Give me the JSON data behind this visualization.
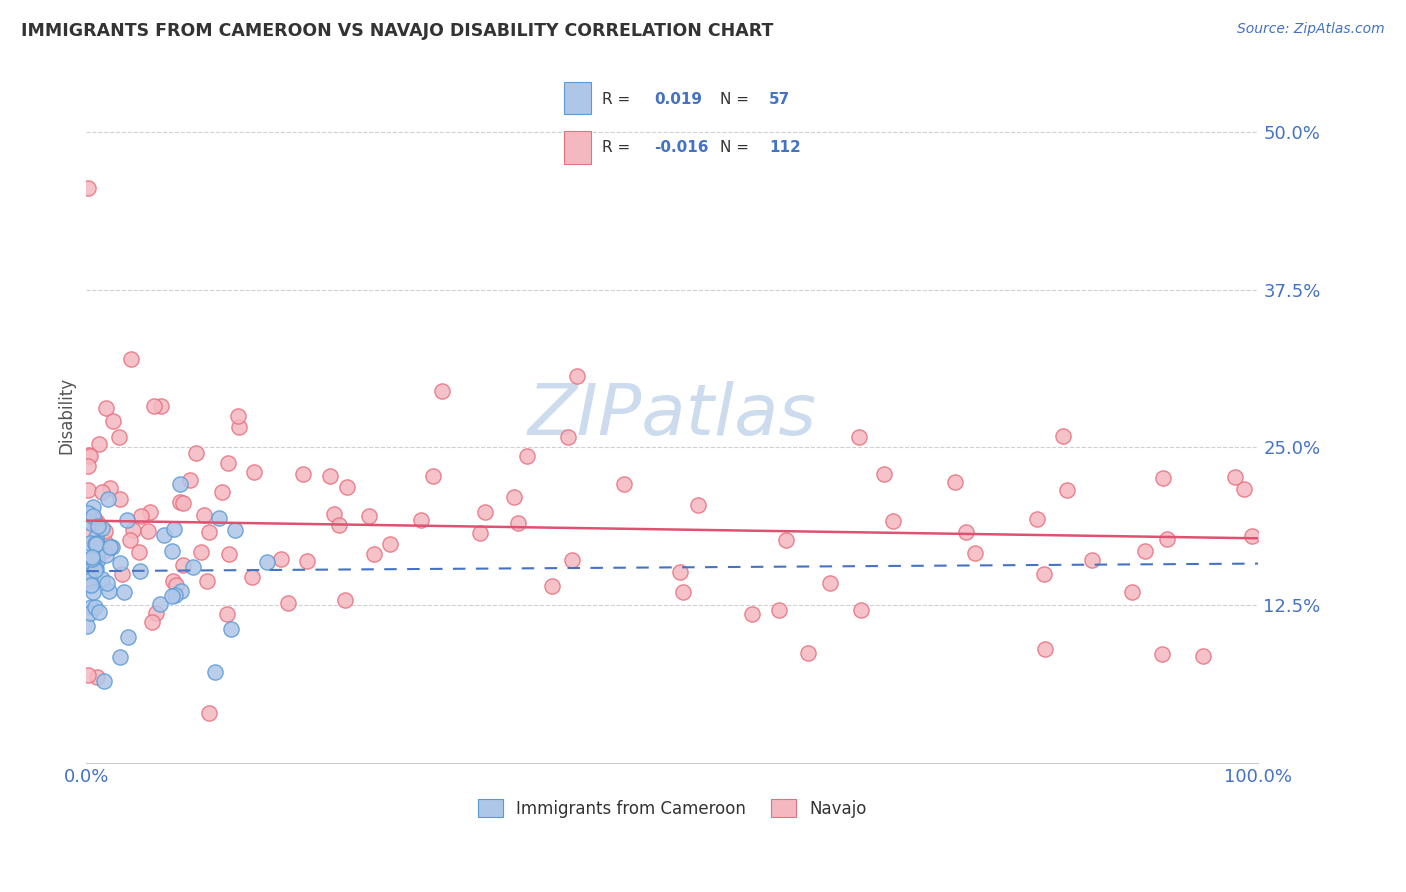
{
  "title": "IMMIGRANTS FROM CAMEROON VS NAVAJO DISABILITY CORRELATION CHART",
  "source_text": "Source: ZipAtlas.com",
  "ylabel": "Disability",
  "xlim": [
    0.0,
    1.0
  ],
  "ylim": [
    0.0,
    0.55
  ],
  "yticks": [
    0.125,
    0.25,
    0.375,
    0.5
  ],
  "ytick_labels": [
    "12.5%",
    "25.0%",
    "37.5%",
    "50.0%"
  ],
  "xtick_labels": [
    "0.0%",
    "100.0%"
  ],
  "background_color": "#ffffff",
  "grid_color": "#d0d0d0",
  "blue_fill": "#aec6e8",
  "blue_edge": "#5b9bd5",
  "pink_fill": "#f4b8c1",
  "pink_edge": "#e8707e",
  "blue_line_color": "#4472c4",
  "pink_line_color": "#e05070",
  "tick_label_color": "#4472c4",
  "ylabel_color": "#555555",
  "title_color": "#333333",
  "source_color": "#4472c4",
  "watermark_color": "#ccdcee",
  "legend_box_color": "#f5f5f5",
  "legend_box_edge": "#cccccc",
  "legend_text_color": "#333333",
  "legend_value_color": "#4472c4",
  "bottom_legend_color": "#333333",
  "blue_r": "0.019",
  "blue_n": "57",
  "pink_r": "-0.016",
  "pink_n": "112",
  "blue_label": "Immigrants from Cameroon",
  "pink_label": "Navajo",
  "pink_line_y0": 0.192,
  "pink_line_y1": 0.178,
  "blue_line_y0": 0.152,
  "blue_line_y1": 0.158
}
